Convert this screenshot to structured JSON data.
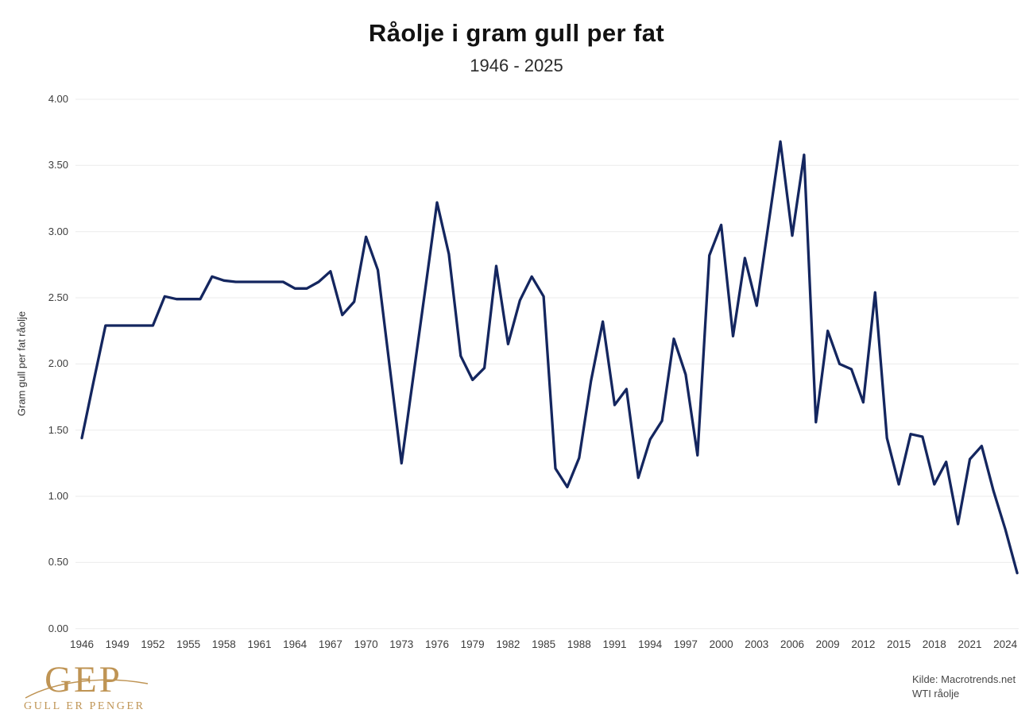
{
  "title": "Råolje i gram gull per fat",
  "subtitle": "1946 - 2025",
  "source": {
    "line1": "Kilde: Macrotrends.net",
    "line2": "WTI råolje"
  },
  "logo": {
    "acronym": "GEP",
    "tagline": "GULL ER PENGER"
  },
  "colors": {
    "line": "#14265f",
    "grid": "#ebebeb",
    "gold": "#bf9454",
    "tick_text": "#3d3d3d"
  },
  "chart_data": {
    "type": "line",
    "title": "Råolje i gram gull per fat",
    "subtitle": "1946 - 2025",
    "xlabel": "",
    "ylabel": "Gram gull per fat råolje",
    "ylim": [
      0,
      4.0
    ],
    "ytick_step": 0.5,
    "ytick_labels": [
      "0.00",
      "0.50",
      "1.00",
      "1.50",
      "2.00",
      "2.50",
      "3.00",
      "3.50",
      "4.00"
    ],
    "xtick_years": [
      1946,
      1949,
      1952,
      1955,
      1958,
      1961,
      1964,
      1967,
      1970,
      1973,
      1976,
      1979,
      1982,
      1985,
      1988,
      1991,
      1994,
      1997,
      2000,
      2003,
      2006,
      2009,
      2012,
      2015,
      2018,
      2021,
      2024
    ],
    "grid": "horizontal",
    "legend": "none",
    "x": [
      1946,
      1947,
      1948,
      1949,
      1950,
      1951,
      1952,
      1953,
      1954,
      1955,
      1956,
      1957,
      1958,
      1959,
      1960,
      1961,
      1962,
      1963,
      1964,
      1965,
      1966,
      1967,
      1968,
      1969,
      1970,
      1971,
      1972,
      1973,
      1974,
      1975,
      1976,
      1977,
      1978,
      1979,
      1980,
      1981,
      1982,
      1983,
      1984,
      1985,
      1986,
      1987,
      1988,
      1989,
      1990,
      1991,
      1992,
      1993,
      1994,
      1995,
      1996,
      1997,
      1998,
      1999,
      2000,
      2001,
      2002,
      2003,
      2004,
      2005,
      2006,
      2007,
      2008,
      2009,
      2010,
      2011,
      2012,
      2013,
      2014,
      2015,
      2016,
      2017,
      2018,
      2019,
      2020,
      2021,
      2022,
      2023,
      2024,
      2025
    ],
    "series": [
      {
        "name": "Gram gull per fat råolje",
        "values": [
          1.44,
          1.87,
          2.29,
          2.29,
          2.29,
          2.29,
          2.29,
          2.51,
          2.49,
          2.49,
          2.49,
          2.66,
          2.63,
          2.62,
          2.62,
          2.62,
          2.62,
          2.62,
          2.57,
          2.57,
          2.62,
          2.7,
          2.37,
          2.47,
          2.96,
          2.71,
          1.98,
          1.25,
          1.91,
          2.56,
          3.22,
          2.83,
          2.06,
          1.88,
          1.97,
          2.74,
          2.15,
          2.48,
          2.66,
          2.51,
          1.21,
          1.07,
          1.29,
          1.87,
          2.32,
          1.69,
          1.81,
          1.14,
          1.43,
          1.57,
          2.19,
          1.92,
          1.31,
          2.82,
          3.05,
          2.21,
          2.8,
          2.44,
          3.06,
          3.68,
          2.97,
          3.58,
          1.56,
          2.25,
          2.0,
          1.96,
          1.71,
          2.54,
          1.44,
          1.09,
          1.47,
          1.45,
          1.09,
          1.26,
          0.79,
          1.28,
          1.38,
          1.04,
          0.75,
          0.42
        ]
      }
    ]
  }
}
